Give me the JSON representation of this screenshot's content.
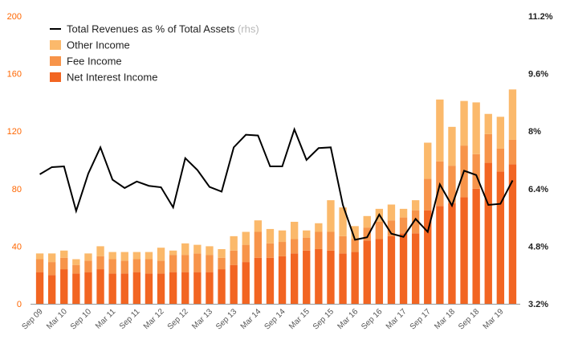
{
  "chart_data": {
    "type": "bar",
    "stacked": true,
    "legend_position": "top-left",
    "x": [
      "Sep 09",
      "Dec 09",
      "Mar 10",
      "Jun 10",
      "Sep 10",
      "Dec 10",
      "Mar 11",
      "Jun 11",
      "Sep 11",
      "Dec 11",
      "Mar 12",
      "Jun 12",
      "Sep 12",
      "Dec 12",
      "Mar 13",
      "Jun 13",
      "Sep 13",
      "Dec 13",
      "Mar 14",
      "Jun 14",
      "Sep 14",
      "Dec 14",
      "Mar 15",
      "Jun 15",
      "Sep 15",
      "Dec 15",
      "Mar 16",
      "Jun 16",
      "Sep 16",
      "Dec 16",
      "Mar 17",
      "Jun 17",
      "Sep 17",
      "Dec 17",
      "Mar 18",
      "Jun 18",
      "Sep 18",
      "Dec 18",
      "Mar 19",
      "Jun 19"
    ],
    "x_tick_labels": [
      "Sep 09",
      "Mar 10",
      "Sep 10",
      "Mar 11",
      "Sep 11",
      "Mar 12",
      "Sep 12",
      "Mar 13",
      "Sep 13",
      "Mar 14",
      "Sep 14",
      "Mar 15",
      "Sep 15",
      "Mar 16",
      "Sep 16",
      "Mar 17",
      "Sep 17",
      "Mar 18",
      "Sep 18",
      "Mar 19"
    ],
    "series": [
      {
        "name": "Net Interest Income",
        "color": "#f26522",
        "values": [
          22,
          20,
          24,
          21,
          22,
          24,
          21,
          21,
          22,
          21,
          21,
          22,
          22,
          22,
          22,
          24,
          27,
          29,
          32,
          32,
          33,
          35,
          37,
          38,
          37,
          35,
          36,
          44,
          45,
          47,
          49,
          49,
          65,
          68,
          70,
          74,
          80,
          98,
          92,
          97
        ]
      },
      {
        "name": "Fee Income",
        "color": "#f7944a",
        "values": [
          9,
          9,
          8,
          6,
          8,
          9,
          10,
          9,
          9,
          10,
          9,
          12,
          12,
          13,
          12,
          8,
          10,
          12,
          18,
          10,
          10,
          10,
          9,
          12,
          13,
          12,
          9,
          9,
          12,
          11,
          11,
          16,
          22,
          31,
          26,
          36,
          24,
          20,
          16,
          17
        ]
      },
      {
        "name": "Other Income",
        "color": "#fbb96b",
        "values": [
          4,
          6,
          5,
          4,
          5,
          7,
          5,
          6,
          5,
          5,
          9,
          3,
          8,
          6,
          6,
          6,
          10,
          9,
          8,
          10,
          8,
          12,
          5,
          6,
          22,
          20,
          9,
          8,
          9,
          11,
          6,
          7,
          25,
          43,
          27,
          31,
          36,
          14,
          22,
          35
        ]
      }
    ],
    "line_series": {
      "name": "Total Revenues as % of Total Assets",
      "axis": "right",
      "color": "#000000",
      "values": [
        6.8,
        7.0,
        7.02,
        5.78,
        6.82,
        7.55,
        6.65,
        6.42,
        6.6,
        6.48,
        6.44,
        5.88,
        7.25,
        6.92,
        6.45,
        6.32,
        7.55,
        7.9,
        7.88,
        7.02,
        7.02,
        8.05,
        7.2,
        7.53,
        7.55,
        5.95,
        4.98,
        5.05,
        5.68,
        5.15,
        5.06,
        5.56,
        5.2,
        6.52,
        5.93,
        6.9,
        6.78,
        5.95,
        5.98,
        6.63
      ]
    },
    "legend": [
      {
        "label": "Total Revenues as % of Total Assets",
        "suffix": "(rhs)",
        "kind": "line",
        "color": "#000000"
      },
      {
        "label": "Other Income",
        "kind": "swatch",
        "color": "#fbb96b"
      },
      {
        "label": "Fee Income",
        "kind": "swatch",
        "color": "#f7944a"
      },
      {
        "label": "Net Interest Income",
        "kind": "swatch",
        "color": "#f26522"
      }
    ],
    "y_left": {
      "range": [
        0,
        200
      ],
      "ticks": [
        "0",
        "40",
        "80",
        "120",
        "160",
        "200"
      ],
      "color": "#ff6600"
    },
    "y_right": {
      "range": [
        3.2,
        11.2
      ],
      "ticks": [
        "3.2%",
        "4.8%",
        "6.4%",
        "8%",
        "9.6%",
        "11.2%"
      ]
    },
    "grid": false
  }
}
